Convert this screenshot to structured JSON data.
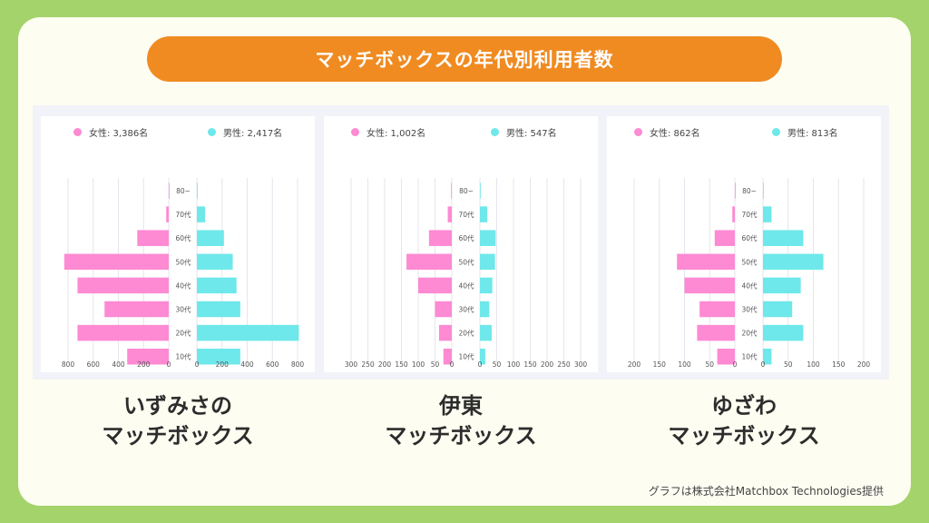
{
  "page": {
    "title": "マッチボックスの年代別利用者数",
    "credit": "グラフは株式会社Matchbox Technologies提供"
  },
  "colors": {
    "female": "#fd8ad3",
    "male": "#6ee8ea",
    "title_bg": "#f08b22",
    "page_bg": "#a3d36a"
  },
  "age_labels": [
    "80~",
    "70代",
    "60代",
    "50代",
    "40代",
    "30代",
    "20代",
    "10代"
  ],
  "chart_data": [
    {
      "type": "bar",
      "caption_lines": [
        "いずみさの",
        "マッチボックス"
      ],
      "legend": {
        "female": "女性: 3,386名",
        "male": "男性: 2,417名"
      },
      "categories": [
        "80~",
        "70代",
        "60代",
        "50代",
        "40代",
        "30代",
        "20代",
        "10代"
      ],
      "series": [
        {
          "name": "女性: 3,386名",
          "values": [
            0,
            20,
            250,
            830,
            725,
            510,
            725,
            330
          ]
        },
        {
          "name": "男性: 2,417名",
          "values": [
            0,
            65,
            215,
            285,
            315,
            345,
            810,
            345
          ]
        }
      ],
      "xlim": [
        0,
        800
      ],
      "female_ticks": [
        "800",
        "600",
        "400",
        "200",
        "0"
      ],
      "male_ticks": [
        "0",
        "200",
        "400",
        "600",
        "800"
      ]
    },
    {
      "type": "bar",
      "caption_lines": [
        "伊東",
        "マッチボックス"
      ],
      "legend": {
        "female": "女性: 1,002名",
        "male": "男性: 547名"
      },
      "categories": [
        "80~",
        "70代",
        "60代",
        "50代",
        "40代",
        "30代",
        "20代",
        "10代"
      ],
      "series": [
        {
          "name": "女性: 1,002名",
          "values": [
            2,
            12,
            68,
            135,
            100,
            50,
            38,
            25
          ]
        },
        {
          "name": "男性: 547名",
          "values": [
            2,
            22,
            47,
            45,
            37,
            28,
            35,
            16
          ]
        }
      ],
      "xlim": [
        0,
        300
      ],
      "female_ticks": [
        "300",
        "250",
        "200",
        "150",
        "100",
        "50",
        "0"
      ],
      "male_ticks": [
        "0",
        "50",
        "100",
        "150",
        "200",
        "250",
        "300"
      ]
    },
    {
      "type": "bar",
      "caption_lines": [
        "ゆざわ",
        "マッチボックス"
      ],
      "legend": {
        "female": "女性: 862名",
        "male": "男性: 813名"
      },
      "categories": [
        "80~",
        "70代",
        "60代",
        "50代",
        "40代",
        "30代",
        "20代",
        "10代"
      ],
      "series": [
        {
          "name": "女性: 862名",
          "values": [
            0,
            5,
            40,
            115,
            100,
            70,
            75,
            35
          ]
        },
        {
          "name": "男性: 813名",
          "values": [
            1,
            17,
            80,
            120,
            75,
            58,
            80,
            17
          ]
        }
      ],
      "xlim": [
        0,
        200
      ],
      "female_ticks": [
        "200",
        "150",
        "100",
        "50",
        "0"
      ],
      "male_ticks": [
        "0",
        "50",
        "100",
        "150",
        "200"
      ]
    }
  ]
}
